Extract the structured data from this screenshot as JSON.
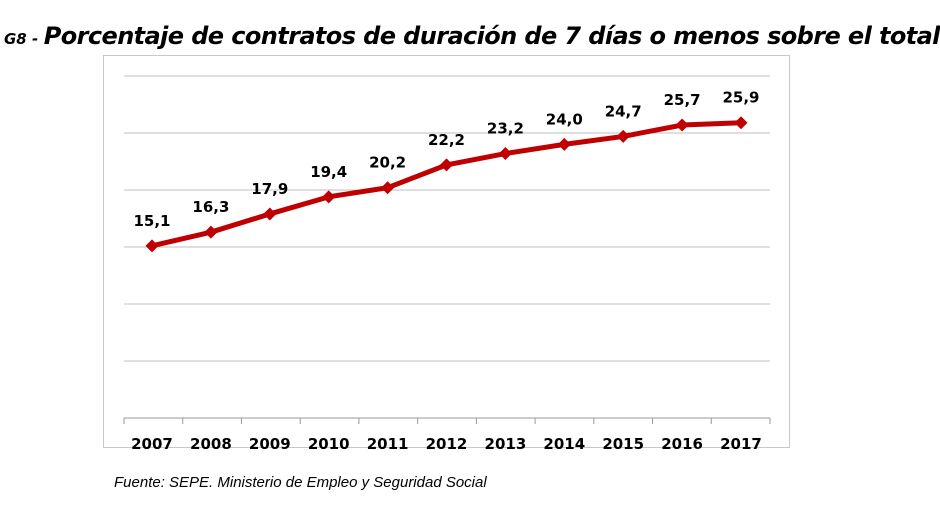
{
  "title": {
    "prefix": "G8 -",
    "text": "Porcentaje de contratos de duración de 7 días o menos sobre el total"
  },
  "source": "Fuente: SEPE. Ministerio de Empleo y Seguridad Social",
  "chart_data": {
    "type": "line",
    "title": "Porcentaje de contratos de duración de 7 días o menos sobre el total",
    "xlabel": "",
    "ylabel": "",
    "categories": [
      "2007",
      "2008",
      "2009",
      "2010",
      "2011",
      "2012",
      "2013",
      "2014",
      "2015",
      "2016",
      "2017"
    ],
    "values": [
      15.1,
      16.3,
      17.9,
      19.4,
      20.2,
      22.2,
      23.2,
      24.0,
      24.7,
      25.7,
      25.9
    ],
    "data_labels": [
      "15,1",
      "16,3",
      "17,9",
      "19,4",
      "20,2",
      "22,2",
      "23,2",
      "24,0",
      "24,7",
      "25,7",
      "25,9"
    ],
    "ylim": [
      0,
      30
    ],
    "ytick_step": 5,
    "ytick_labels_shown": false,
    "grid": true,
    "marker": "diamond",
    "color": "#c00000"
  }
}
